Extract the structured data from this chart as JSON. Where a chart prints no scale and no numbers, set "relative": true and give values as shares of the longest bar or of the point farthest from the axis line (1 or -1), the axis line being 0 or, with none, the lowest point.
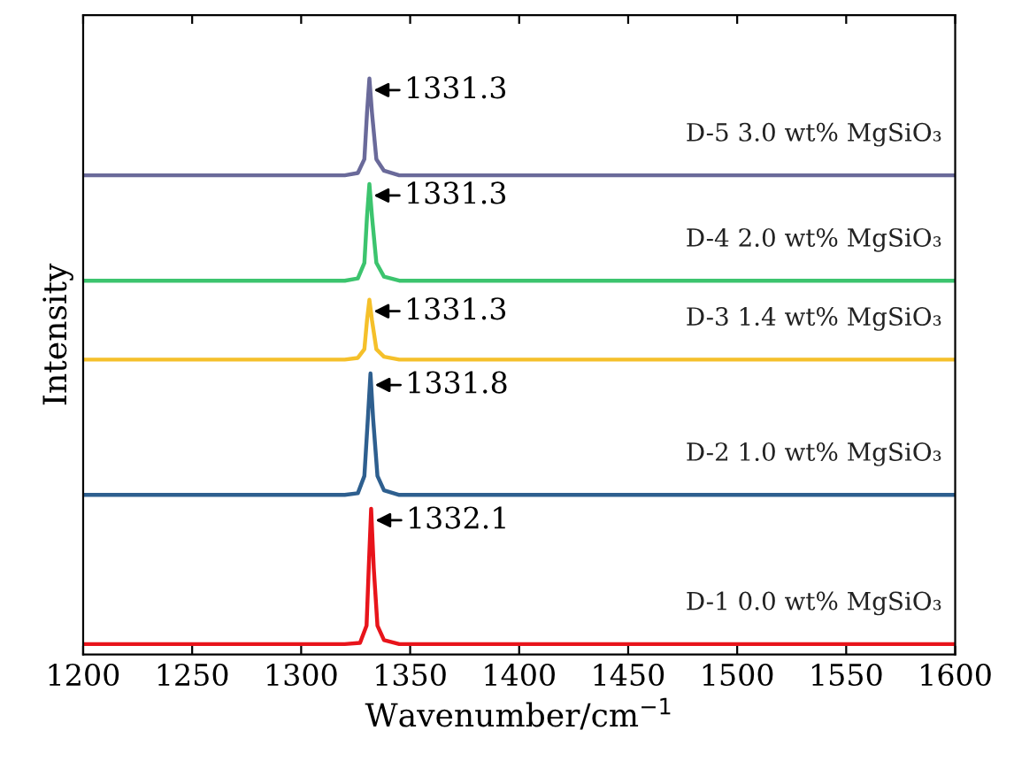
{
  "chart_data": {
    "type": "line",
    "relative": true,
    "xlabel": "Wavenumber/cm$^{−1}$",
    "ylabel": "Intensity",
    "xlim": [
      1200,
      1600
    ],
    "xticks": [
      1200,
      1250,
      1300,
      1350,
      1400,
      1450,
      1500,
      1550,
      1600
    ],
    "grid": false,
    "legend": false,
    "tick_labels": "x",
    "series": [
      {
        "name": "D-1 0.0 wt% MgSiO₃",
        "color": "#e8141b",
        "x": [
          1200,
          1320,
          1327,
          1330,
          1331,
          1332.1,
          1333.3,
          1335,
          1338,
          1345,
          1600
        ],
        "values": [
          0.018,
          0.018,
          0.02,
          0.05,
          0.15,
          0.253,
          0.15,
          0.05,
          0.025,
          0.018,
          0.018
        ]
      },
      {
        "name": "D-2 1.0 wt% MgSiO₃",
        "color": "#2e5f8f",
        "x": [
          1200,
          1320,
          1326,
          1329,
          1330.6,
          1331.8,
          1333,
          1335,
          1338,
          1345,
          1600
        ],
        "values": [
          0.277,
          0.277,
          0.28,
          0.31,
          0.41,
          0.488,
          0.41,
          0.31,
          0.285,
          0.277,
          0.277
        ]
      },
      {
        "name": "D-3 1.4 wt% MgSiO₃",
        "color": "#f5c02a",
        "x": [
          1200,
          1320,
          1326,
          1329,
          1330.2,
          1331.3,
          1332.5,
          1334.5,
          1338,
          1345,
          1600
        ],
        "values": [
          0.512,
          0.512,
          0.515,
          0.53,
          0.58,
          0.616,
          0.58,
          0.53,
          0.517,
          0.512,
          0.512
        ]
      },
      {
        "name": "D-4 2.0 wt% MgSiO₃",
        "color": "#3cc46e",
        "x": [
          1200,
          1320,
          1326,
          1329,
          1330.2,
          1331.3,
          1332.5,
          1334.5,
          1338,
          1345,
          1600
        ],
        "values": [
          0.649,
          0.649,
          0.653,
          0.68,
          0.76,
          0.817,
          0.76,
          0.68,
          0.656,
          0.649,
          0.649
        ]
      },
      {
        "name": "D-5 3.0 wt% MgSiO₃",
        "color": "#6a6a9a",
        "x": [
          1200,
          1320,
          1326,
          1329,
          1330.2,
          1331.3,
          1332.5,
          1334.5,
          1338,
          1345,
          1600
        ],
        "values": [
          0.832,
          0.832,
          0.836,
          0.86,
          0.94,
          1.0,
          0.94,
          0.86,
          0.84,
          0.832,
          0.832
        ]
      }
    ],
    "annotations": [
      {
        "text": "1332.1",
        "x": 1332.1,
        "y": 0.253
      },
      {
        "text": "1331.8",
        "x": 1331.8,
        "y": 0.488
      },
      {
        "text": "1331.3",
        "x": 1331.3,
        "y": 0.616
      },
      {
        "text": "1331.3",
        "x": 1331.3,
        "y": 0.817
      },
      {
        "text": "1331.3",
        "x": 1331.3,
        "y": 1.0
      }
    ]
  }
}
